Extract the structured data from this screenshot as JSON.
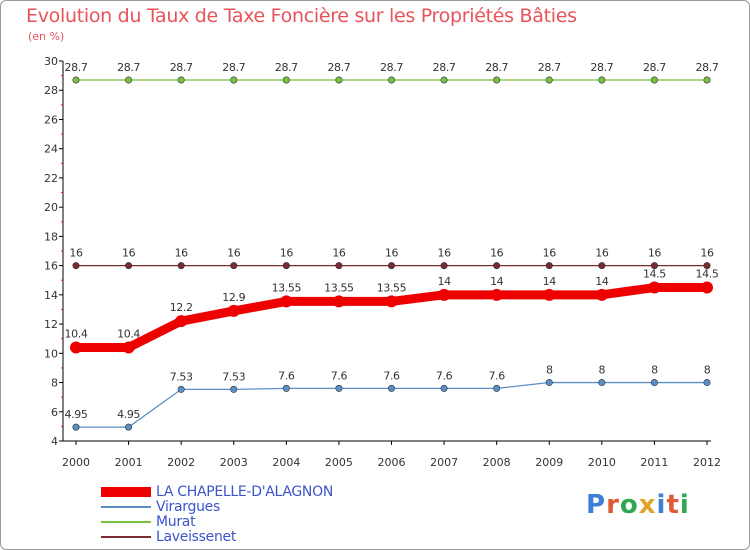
{
  "header": {
    "title": "Evolution du Taux de Taxe Foncière sur les Propriétés Bâties",
    "unit": "(en %)"
  },
  "logo": {
    "text": "Proxiti",
    "letter_colors": [
      "#3b7fd6",
      "#e05a3a",
      "#2fa84f",
      "#e0a52a",
      "#3b7fd6",
      "#e05a3a",
      "#2fa84f"
    ]
  },
  "chart_data": {
    "type": "line",
    "title": "Evolution du Taux de Taxe Foncière sur les Propriétés Bâties",
    "ylabel": "(en %)",
    "xlabel": "",
    "x": [
      2000,
      2001,
      2002,
      2003,
      2004,
      2005,
      2006,
      2007,
      2008,
      2009,
      2010,
      2011,
      2012
    ],
    "ylim": [
      4,
      30
    ],
    "yticks": [
      4,
      6,
      8,
      10,
      12,
      14,
      16,
      18,
      20,
      22,
      24,
      26,
      28,
      30
    ],
    "grid": false,
    "legend_position": "bottom-left",
    "series": [
      {
        "name": "Murat",
        "color": "#78c13f",
        "emphasis": false,
        "values": [
          28.7,
          28.7,
          28.7,
          28.7,
          28.7,
          28.7,
          28.7,
          28.7,
          28.7,
          28.7,
          28.7,
          28.7,
          28.7
        ],
        "labels": [
          "28.7",
          "28.7",
          "28.7",
          "28.7",
          "28.7",
          "28.7",
          "28.7",
          "28.7",
          "28.7",
          "28.7",
          "28.7",
          "28.7",
          "28.7"
        ]
      },
      {
        "name": "Laveissenet",
        "color": "#7a2a33",
        "emphasis": false,
        "values": [
          16,
          16,
          16,
          16,
          16,
          16,
          16,
          16,
          16,
          16,
          16,
          16,
          16
        ],
        "labels": [
          "16",
          "16",
          "16",
          "16",
          "16",
          "16",
          "16",
          "16",
          "16",
          "16",
          "16",
          "16",
          "16"
        ]
      },
      {
        "name": "Virargues",
        "color": "#5a8fc7",
        "emphasis": false,
        "values": [
          4.95,
          4.95,
          7.53,
          7.53,
          7.6,
          7.6,
          7.6,
          7.6,
          7.6,
          8,
          8,
          8,
          8
        ],
        "labels": [
          "4.95",
          "4.95",
          "7.53",
          "7.53",
          "7.6",
          "7.6",
          "7.6",
          "7.6",
          "7.6",
          "8",
          "8",
          "8",
          "8"
        ]
      },
      {
        "name": "LA CHAPELLE-D'ALAGNON",
        "color": "#ee0000",
        "emphasis": true,
        "values": [
          10.4,
          10.4,
          12.2,
          12.9,
          13.55,
          13.55,
          13.55,
          14,
          14,
          14,
          14,
          14.5,
          14.5
        ],
        "labels": [
          "10.4",
          "10.4",
          "12.2",
          "12.9",
          "13.55",
          "13.55",
          "13.55",
          "14",
          "14",
          "14",
          "14",
          "14.5",
          "14.5"
        ]
      }
    ],
    "legend_order": [
      "LA CHAPELLE-D'ALAGNON",
      "Virargues",
      "Murat",
      "Laveissenet"
    ]
  }
}
